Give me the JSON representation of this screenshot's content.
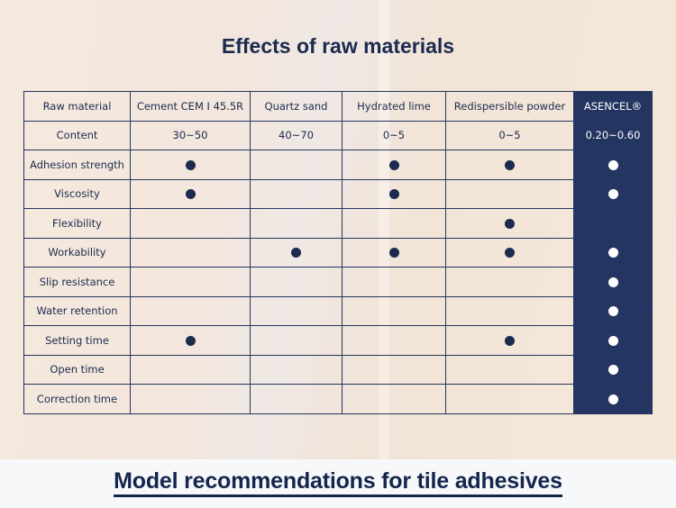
{
  "title": "Effects of raw materials",
  "table": {
    "headers": [
      "Raw material",
      "Cement CEM I 45.5R",
      "Quartz sand",
      "Hydrated lime",
      "Redispersible powder",
      "ASENCEL®"
    ],
    "content_row": [
      "Content",
      "30~50",
      "40~70",
      "0~5",
      "0~5",
      "0.20~0.60"
    ],
    "rows": [
      {
        "label": "Adhesion strength",
        "marks": [
          true,
          false,
          true,
          true,
          true
        ]
      },
      {
        "label": "Viscosity",
        "marks": [
          true,
          false,
          true,
          false,
          true
        ]
      },
      {
        "label": "Flexibility",
        "marks": [
          false,
          false,
          false,
          true,
          false
        ]
      },
      {
        "label": "Workability",
        "marks": [
          false,
          true,
          true,
          true,
          true
        ]
      },
      {
        "label": "Slip resistance",
        "marks": [
          false,
          false,
          false,
          false,
          true
        ]
      },
      {
        "label": "Water retention",
        "marks": [
          false,
          false,
          false,
          false,
          true
        ]
      },
      {
        "label": "Setting time",
        "marks": [
          true,
          false,
          false,
          true,
          true
        ]
      },
      {
        "label": "Open time",
        "marks": [
          false,
          false,
          false,
          false,
          true
        ]
      },
      {
        "label": "Correction time",
        "marks": [
          false,
          false,
          false,
          false,
          true
        ]
      }
    ]
  },
  "bottom_heading": "Model recommendations for tile adhesives",
  "colors": {
    "navy": "#233560",
    "text": "#1b2a4e"
  }
}
